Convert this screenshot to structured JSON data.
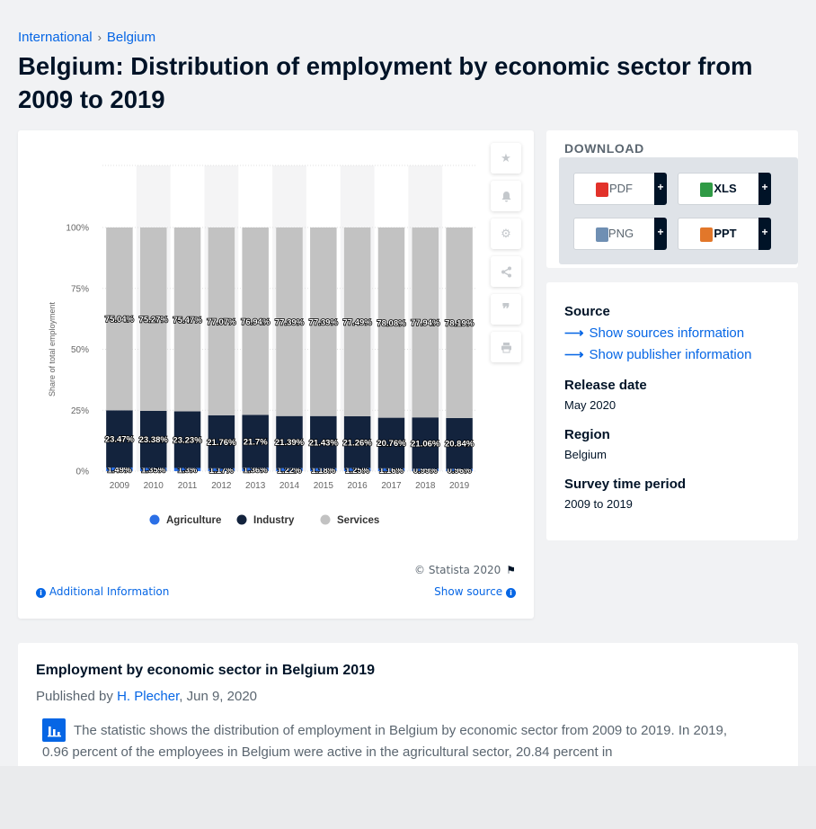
{
  "breadcrumb": {
    "items": [
      "International",
      "Belgium"
    ],
    "separator": "›"
  },
  "title": "Belgium: Distribution of employment by economic sector from 2009 to 2019",
  "chart_data": {
    "type": "bar",
    "stacked": true,
    "categories": [
      "2009",
      "2010",
      "2011",
      "2012",
      "2013",
      "2014",
      "2015",
      "2016",
      "2017",
      "2018",
      "2019"
    ],
    "series": [
      {
        "name": "Agriculture",
        "color": "#2b6fe6",
        "values": [
          1.49,
          1.35,
          1.3,
          1.17,
          1.36,
          1.22,
          1.18,
          1.25,
          1.16,
          0.99,
          0.96
        ],
        "labels": [
          "1.49%",
          "1.35%",
          "1.3%",
          "1.17%",
          "1.36%",
          "1.22%",
          "1.18%",
          "1.25%",
          "1.16%",
          "0.99%",
          "0.96%"
        ]
      },
      {
        "name": "Industry",
        "color": "#13233d",
        "values": [
          23.47,
          23.38,
          23.23,
          21.76,
          21.7,
          21.39,
          21.43,
          21.26,
          20.76,
          21.06,
          20.84
        ],
        "labels": [
          "23.47%",
          "23.38%",
          "23.23%",
          "21.76%",
          "21.7%",
          "21.39%",
          "21.43%",
          "21.26%",
          "20.76%",
          "21.06%",
          "20.84%"
        ]
      },
      {
        "name": "Services",
        "color": "#c2c2c2",
        "values": [
          75.04,
          75.27,
          75.47,
          77.07,
          76.94,
          77.39,
          77.39,
          77.49,
          78.08,
          77.94,
          78.19
        ],
        "labels": [
          "75.04%",
          "75.27%",
          "75.47%",
          "77.07%",
          "76.94%",
          "77.39%",
          "77.39%",
          "77.49%",
          "78.08%",
          "77.94%",
          "78.19%"
        ]
      }
    ],
    "ylabel": "Share of total employment",
    "yticks": [
      "0%",
      "25%",
      "50%",
      "75%",
      "100%"
    ],
    "ylim": [
      0,
      100
    ],
    "legend": "bottom",
    "grid": true
  },
  "chart_card": {
    "copyright": "© Statista 2020",
    "additional_info": "Additional Information",
    "show_source": "Show source"
  },
  "tools": [
    "star-icon",
    "bell-icon",
    "gear-icon",
    "share-icon",
    "quote-icon",
    "print-icon"
  ],
  "download": {
    "title": "DOWNLOAD",
    "buttons": [
      {
        "label": "PDF",
        "icon": "pdf-icon",
        "color": "#e2322a"
      },
      {
        "label": "XLS",
        "icon": "xls-icon",
        "color": "#2f9a45"
      },
      {
        "label": "PNG",
        "icon": "png-icon",
        "color": "#6f8fb3"
      },
      {
        "label": "PPT",
        "icon": "ppt-icon",
        "color": "#e2772a"
      }
    ],
    "plus": "+"
  },
  "meta": {
    "source_heading": "Source",
    "sources_link": "Show sources information",
    "publisher_link": "Show publisher information",
    "release_heading": "Release date",
    "release_value": "May 2020",
    "region_heading": "Region",
    "region_value": "Belgium",
    "period_heading": "Survey time period",
    "period_value": "2009 to 2019"
  },
  "description": {
    "title": "Employment by economic sector in Belgium 2019",
    "published_prefix": "Published by ",
    "author": "H. Plecher",
    "date": ", Jun 9, 2020",
    "text": "The statistic shows the distribution of employment in Belgium by economic sector from 2009 to 2019. In 2019, 0.96 percent of the employees in Belgium were active in the agricultural sector, 20.84 percent in"
  }
}
